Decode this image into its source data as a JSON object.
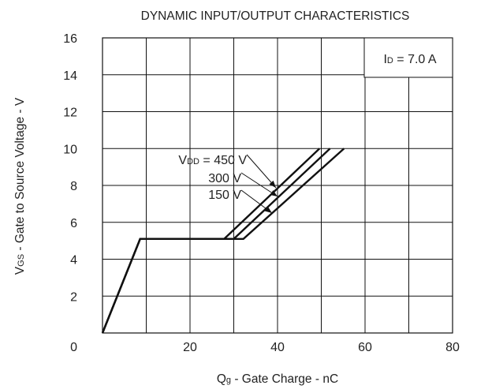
{
  "chart_data": {
    "type": "line",
    "title": "DYNAMIC INPUT/OUTPUT CHARACTERISTICS",
    "xlabel": {
      "main": "Q",
      "sub": "g",
      "rest": " - Gate Charge - nC"
    },
    "ylabel": {
      "main": "V",
      "sub": "GS",
      "rest": " - Gate to Source Voltage - V"
    },
    "xlim": [
      0,
      80
    ],
    "ylim": [
      0,
      16
    ],
    "xticks": [
      0,
      20,
      40,
      60,
      80
    ],
    "yticks": [
      0,
      2,
      4,
      6,
      8,
      10,
      12,
      14,
      16
    ],
    "x_tick_labels": [
      "20",
      "40",
      "60",
      "80"
    ],
    "y_tick_labels": [
      "2",
      "4",
      "6",
      "8",
      "10",
      "12",
      "14",
      "16"
    ],
    "origin_label": "0",
    "grid": true,
    "condition": {
      "main": "I",
      "sub": "D",
      "rest": " = 7.0 A"
    },
    "series": [
      {
        "name": {
          "main": "V",
          "sub": "DD",
          "rest": " = 450 V"
        },
        "x": [
          0,
          8.6,
          27.8,
          49.6
        ],
        "y": [
          0,
          5.1,
          5.1,
          10
        ]
      },
      {
        "name": {
          "main": "",
          "sub": "",
          "rest": "300 V"
        },
        "x": [
          0,
          8.6,
          30.0,
          52.0
        ],
        "y": [
          0,
          5.1,
          5.1,
          10
        ]
      },
      {
        "name": {
          "main": "",
          "sub": "",
          "rest": "150 V"
        },
        "x": [
          0,
          8.6,
          32.2,
          55.2
        ],
        "y": [
          0,
          5.1,
          5.1,
          10
        ]
      }
    ]
  }
}
